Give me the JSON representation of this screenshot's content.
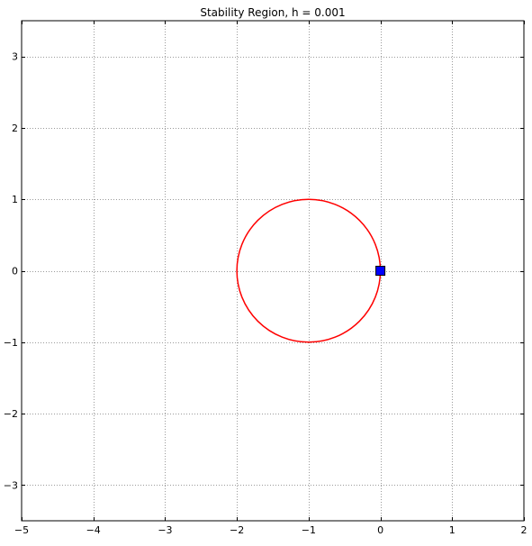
{
  "chart_data": {
    "type": "line",
    "title": "Stability Region, h = 0.001",
    "xlabel": "",
    "ylabel": "",
    "xlim": [
      -5,
      2
    ],
    "ylim": [
      -3.5,
      3.5
    ],
    "x_ticks": [
      -5,
      -4,
      -3,
      -2,
      -1,
      0,
      1,
      2
    ],
    "y_ticks": [
      -3,
      -2,
      -1,
      0,
      1,
      2,
      3
    ],
    "x_tick_labels": [
      "−5",
      "−4",
      "−3",
      "−2",
      "−1",
      "0",
      "1",
      "2"
    ],
    "y_tick_labels": [
      "−3",
      "−2",
      "−1",
      "0",
      "1",
      "2",
      "3"
    ],
    "grid": true,
    "series": [
      {
        "kind": "circle",
        "center": [
          -1,
          0
        ],
        "radius": 1,
        "color": "#ff0000"
      },
      {
        "kind": "marker",
        "points": [
          [
            0,
            0
          ]
        ],
        "marker": "square",
        "color": "#0000ff"
      }
    ]
  }
}
